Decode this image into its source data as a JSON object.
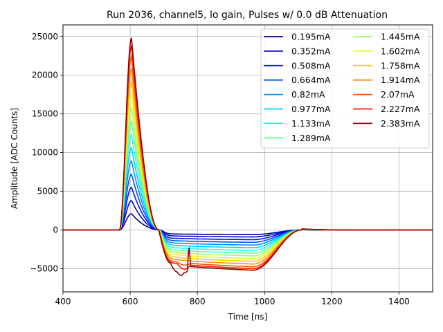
{
  "chart_data": {
    "type": "line",
    "title": "Run 2036, channel5, lo gain, Pulses w/ 0.0 dB Attenuation",
    "xlabel": "Time [ns]",
    "ylabel": "Amplitude [ADC Counts]",
    "xlim": [
      400,
      1500
    ],
    "ylim": [
      -8000,
      26500
    ],
    "xticks": [
      400,
      600,
      800,
      1000,
      1200,
      1400
    ],
    "yticks": [
      -5000,
      0,
      5000,
      10000,
      15000,
      20000,
      25000
    ],
    "xtick_labels": [
      "400",
      "600",
      "800",
      "1000",
      "1200",
      "1400"
    ],
    "ytick_labels": [
      "−5000",
      "0",
      "5000",
      "10000",
      "15000",
      "20000",
      "25000"
    ],
    "grid": true,
    "legend_position": "top-right",
    "legend_columns": 2,
    "series": [
      {
        "name": "0.195mA",
        "color": "#00008f",
        "peak": 2100,
        "undershoot": -600
      },
      {
        "name": "0.352mA",
        "color": "#0000d0",
        "peak": 3800,
        "undershoot": -900
      },
      {
        "name": "0.508mA",
        "color": "#0010ff",
        "peak": 5500,
        "undershoot": -1250
      },
      {
        "name": "0.664mA",
        "color": "#0050ff",
        "peak": 7200,
        "undershoot": -1600
      },
      {
        "name": "0.82mA",
        "color": "#0090ff",
        "peak": 8900,
        "undershoot": -1950
      },
      {
        "name": "0.977mA",
        "color": "#00d0ff",
        "peak": 10600,
        "undershoot": -2300
      },
      {
        "name": "1.133mA",
        "color": "#20ffdf",
        "peak": 12300,
        "undershoot": -2650
      },
      {
        "name": "1.289mA",
        "color": "#60ff9f",
        "peak": 14000,
        "undershoot": -3000
      },
      {
        "name": "1.445mA",
        "color": "#9fff60",
        "peak": 15700,
        "undershoot": -3350
      },
      {
        "name": "1.602mA",
        "color": "#dfff20",
        "peak": 17400,
        "undershoot": -3700
      },
      {
        "name": "1.758mA",
        "color": "#ffd000",
        "peak": 19100,
        "undershoot": -4050
      },
      {
        "name": "1.914mA",
        "color": "#ff9000",
        "peak": 20800,
        "undershoot": -4400
      },
      {
        "name": "2.07mA",
        "color": "#ff5000",
        "peak": 22400,
        "undershoot": -4750
      },
      {
        "name": "2.227mA",
        "color": "#ff1000",
        "peak": 23800,
        "undershoot": -5000
      },
      {
        "name": "2.383mA",
        "color": "#900000",
        "peak": 24800,
        "undershoot": -5200
      }
    ]
  }
}
